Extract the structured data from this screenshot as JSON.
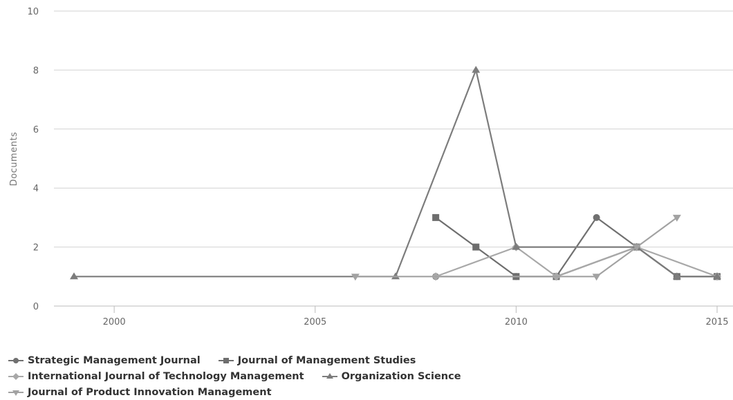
{
  "chart_data": {
    "type": "line",
    "title": "",
    "xlabel": "",
    "ylabel": "Documents",
    "xlim": [
      1998,
      2015.4
    ],
    "ylim": [
      0,
      10
    ],
    "x_ticks": [
      2000,
      2005,
      2010,
      2015
    ],
    "y_ticks": [
      0,
      2,
      4,
      6,
      8,
      10
    ],
    "grid": "horizontal",
    "legend_position": "bottom-left",
    "series": [
      {
        "name": "Strategic Management Journal",
        "marker": "circle",
        "color": "#707070",
        "points": [
          [
            2008,
            1
          ],
          [
            2010,
            1
          ],
          [
            2011,
            1
          ],
          [
            2012,
            3
          ],
          [
            2013,
            2
          ],
          [
            2014,
            1
          ],
          [
            2015,
            1
          ]
        ]
      },
      {
        "name": "Journal of Management Studies",
        "marker": "square",
        "color": "#6e6e6e",
        "points": [
          [
            2008,
            3
          ],
          [
            2009,
            2
          ],
          [
            2010,
            1
          ],
          [
            2011,
            1
          ],
          [
            2013,
            2
          ],
          [
            2014,
            1
          ],
          [
            2015,
            1
          ]
        ]
      },
      {
        "name": "International Journal of Technology Management",
        "marker": "diamond",
        "color": "#a8a8a8",
        "points": [
          [
            2008,
            1
          ],
          [
            2010,
            2
          ],
          [
            2011,
            1
          ],
          [
            2013,
            2
          ],
          [
            2015,
            1
          ]
        ]
      },
      {
        "name": "Organization Science",
        "marker": "triangle",
        "color": "#7c7c7c",
        "points": [
          [
            1999,
            1
          ],
          [
            2007,
            1
          ],
          [
            2009,
            8
          ],
          [
            2010,
            2
          ],
          [
            2013,
            2
          ],
          [
            2014,
            1
          ],
          [
            2015,
            1
          ]
        ]
      },
      {
        "name": "Journal of Product Innovation Management",
        "marker": "triangle-down",
        "color": "#a2a2a2",
        "points": [
          [
            2006,
            1
          ],
          [
            2012,
            1
          ],
          [
            2013,
            2
          ],
          [
            2014,
            3
          ]
        ]
      }
    ]
  }
}
